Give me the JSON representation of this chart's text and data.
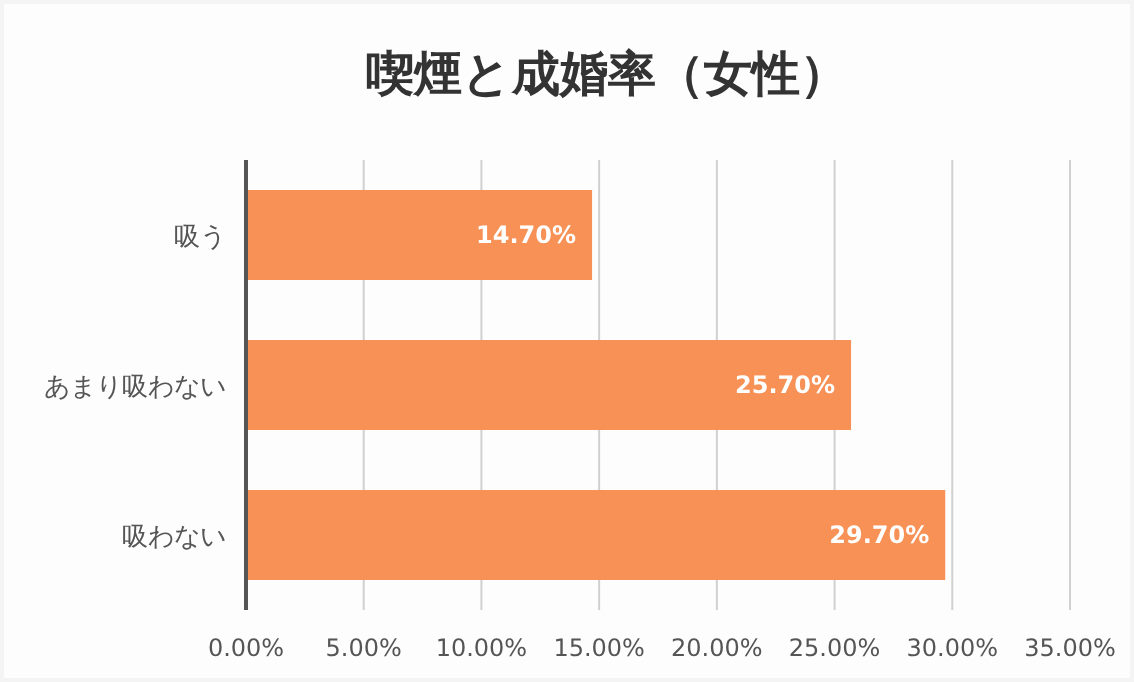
{
  "chart_data": {
    "type": "bar",
    "orientation": "horizontal",
    "title": "喫煙と成婚率（女性）",
    "categories": [
      "吸う",
      "あまり吸わない",
      "吸わない"
    ],
    "values": [
      14.7,
      25.7,
      29.7
    ],
    "color": "#f79155",
    "value_labels": [
      "14.70%",
      "25.70%",
      "29.70%"
    ],
    "xlim": [
      0,
      35
    ],
    "xticks": [
      {
        "value": 0,
        "label": "0.00%"
      },
      {
        "value": 5,
        "label": "5.00%"
      },
      {
        "value": 10,
        "label": "10.00%"
      },
      {
        "value": 15,
        "label": "15.00%"
      },
      {
        "value": 20,
        "label": "20.00%"
      },
      {
        "value": 25,
        "label": "25.00%"
      },
      {
        "value": 30,
        "label": "30.00%"
      },
      {
        "value": 35,
        "label": "35.00%"
      }
    ],
    "grid": "x"
  }
}
